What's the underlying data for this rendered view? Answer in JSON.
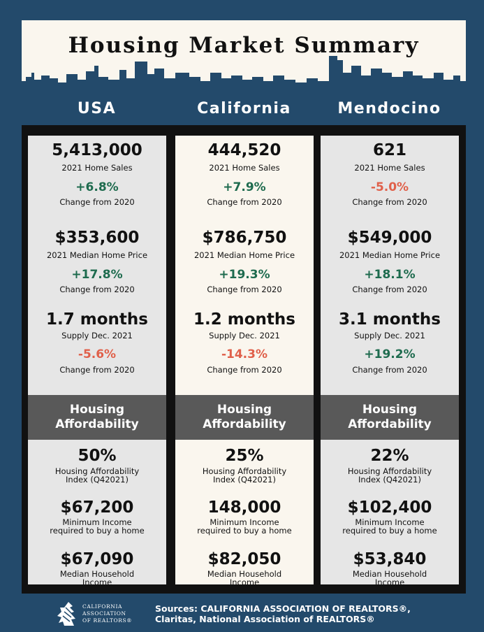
{
  "title": "Housing Market Summary",
  "regions": [
    {
      "name": "USA",
      "home_sales": "5,413,000",
      "home_sales_label": "2021 Home Sales",
      "home_sales_change": "+6.8%",
      "median_price": "$353,600",
      "median_price_label": "2021 Median Home Price",
      "median_price_change": "+17.8%",
      "supply": "1.7 months",
      "supply_label": "Supply Dec. 2021",
      "supply_change": "-5.6%",
      "change_label": "Change from 2020",
      "affordability_heading_1": "Housing",
      "affordability_heading_2": "Affordability",
      "hai": "50%",
      "hai_label_1": "Housing Affordability",
      "hai_label_2": "Index (Q42021)",
      "min_income": "$67,200",
      "min_income_label_1": "Minimum Income",
      "min_income_label_2": "required to buy a home",
      "median_income": "$67,090",
      "median_income_label_1": "Median Household",
      "median_income_label_2": "Income"
    },
    {
      "name": "California",
      "home_sales": "444,520",
      "home_sales_label": "2021 Home Sales",
      "home_sales_change": "+7.9%",
      "median_price": "$786,750",
      "median_price_label": "2021 Median Home Price",
      "median_price_change": "+19.3%",
      "supply": "1.2 months",
      "supply_label": "Supply Dec. 2021",
      "supply_change": "-14.3%",
      "change_label": "Change from 2020",
      "affordability_heading_1": "Housing",
      "affordability_heading_2": "Affordability",
      "hai": "25%",
      "hai_label_1": "Housing Affordability",
      "hai_label_2": "Index (Q42021)",
      "min_income": "148,000",
      "min_income_label_1": "Minimum Income",
      "min_income_label_2": "required to buy a home",
      "median_income": "$82,050",
      "median_income_label_1": "Median Household",
      "median_income_label_2": "Income"
    },
    {
      "name": "Mendocino",
      "home_sales": "621",
      "home_sales_label": "2021 Home Sales",
      "home_sales_change": "-5.0%",
      "median_price": "$549,000",
      "median_price_label": "2021 Median Home Price",
      "median_price_change": "+18.1%",
      "supply": "3.1 months",
      "supply_label": "Supply Dec. 2021",
      "supply_change": "+19.2%",
      "change_label": "Change from 2020",
      "affordability_heading_1": "Housing",
      "affordability_heading_2": "Affordability",
      "hai": "22%",
      "hai_label_1": "Housing Affordability",
      "hai_label_2": "Index (Q42021)",
      "min_income": "$102,400",
      "min_income_label_1": "Minimum Income",
      "min_income_label_2": "required to buy a home",
      "median_income": "$53,840",
      "median_income_label_1": "Median Household",
      "median_income_label_2": "Income"
    }
  ],
  "footer": {
    "logo_line_1": "CALIFORNIA",
    "logo_line_2": "ASSOCIATION",
    "logo_line_3": "OF REALTORS®",
    "sources_line_1": "Sources: CALIFORNIA ASSOCIATION OF REALTORS®,",
    "sources_line_2": "Claritas, National Association of REALTORS®"
  },
  "colors": {
    "background": "#234a6b",
    "positive": "#1e6b4e",
    "negative": "#e0604a",
    "band": "#595959"
  }
}
